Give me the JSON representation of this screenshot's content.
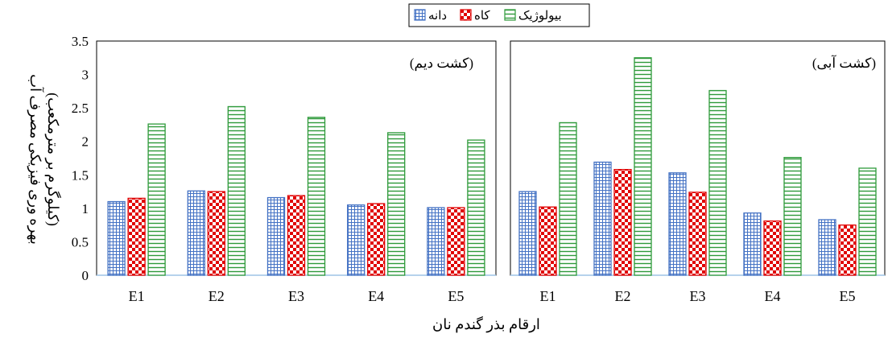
{
  "chart_data": {
    "type": "bar",
    "xlabel": "ارقام بذر گندم نان",
    "ylabel_line1": "بهره وری فیزیکی مصرف آب",
    "ylabel_line2": "(کیلوگرم بر مترمکعب)",
    "categories": [
      "E1",
      "E2",
      "E3",
      "E4",
      "E5"
    ],
    "ylim": [
      0,
      3.5
    ],
    "yticks": [
      "0",
      "0.5",
      "1",
      "1.5",
      "2",
      "2.5",
      "3",
      "3.5"
    ],
    "legend_position": "top-center",
    "series_meta": [
      {
        "name": "دانه",
        "color": "#4472C4",
        "pattern": "grid"
      },
      {
        "name": "کاه",
        "color": "#E00000",
        "pattern": "checker"
      },
      {
        "name": "بیولوژیک",
        "color": "#2E9A3A",
        "pattern": "hlines"
      }
    ],
    "panels": [
      {
        "title": "(کشت دیم)",
        "series": [
          {
            "name": "دانه",
            "values": [
              1.1,
              1.26,
              1.16,
              1.05,
              1.01
            ]
          },
          {
            "name": "کاه",
            "values": [
              1.15,
              1.25,
              1.19,
              1.07,
              1.01
            ]
          },
          {
            "name": "بیولوژیک",
            "values": [
              2.26,
              2.52,
              2.36,
              2.13,
              2.02
            ]
          }
        ]
      },
      {
        "title": "(کشت آبی)",
        "series": [
          {
            "name": "دانه",
            "values": [
              1.25,
              1.69,
              1.53,
              0.93,
              0.83
            ]
          },
          {
            "name": "کاه",
            "values": [
              1.02,
              1.58,
              1.24,
              0.81,
              0.75
            ]
          },
          {
            "name": "بیولوژیک",
            "values": [
              2.28,
              3.25,
              2.76,
              1.76,
              1.6
            ]
          }
        ]
      }
    ]
  }
}
